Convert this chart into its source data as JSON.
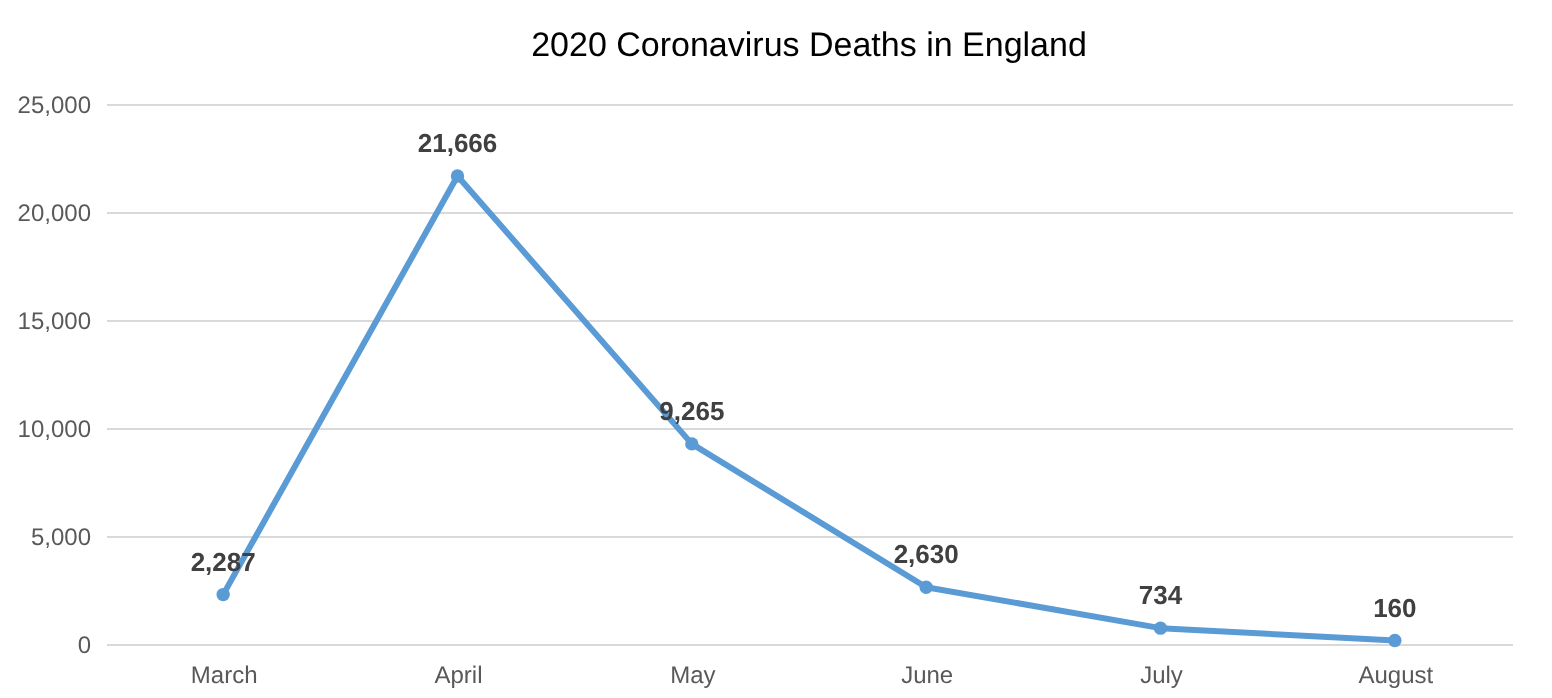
{
  "chart_data": {
    "type": "line",
    "title": "2020 Coronavirus Deaths in England",
    "categories": [
      "March",
      "April",
      "May",
      "June",
      "July",
      "August"
    ],
    "series": [
      {
        "color": "#5b9bd5",
        "values": [
          2287,
          21666,
          9265,
          2630,
          734,
          160
        ],
        "value_labels": [
          "2,287",
          "21,666",
          "9,265",
          "2,630",
          "734",
          "160"
        ]
      }
    ],
    "ylim": [
      0,
      25000
    ],
    "yticks": [
      {
        "value": 0,
        "label": "0"
      },
      {
        "value": 5000,
        "label": "5,000"
      },
      {
        "value": 10000,
        "label": "10,000"
      },
      {
        "value": 15000,
        "label": "15,000"
      },
      {
        "value": 20000,
        "label": "20,000"
      },
      {
        "value": 25000,
        "label": "25,000"
      }
    ],
    "grid": "y",
    "legend": false,
    "marker": "circle",
    "line_style": "solid"
  }
}
